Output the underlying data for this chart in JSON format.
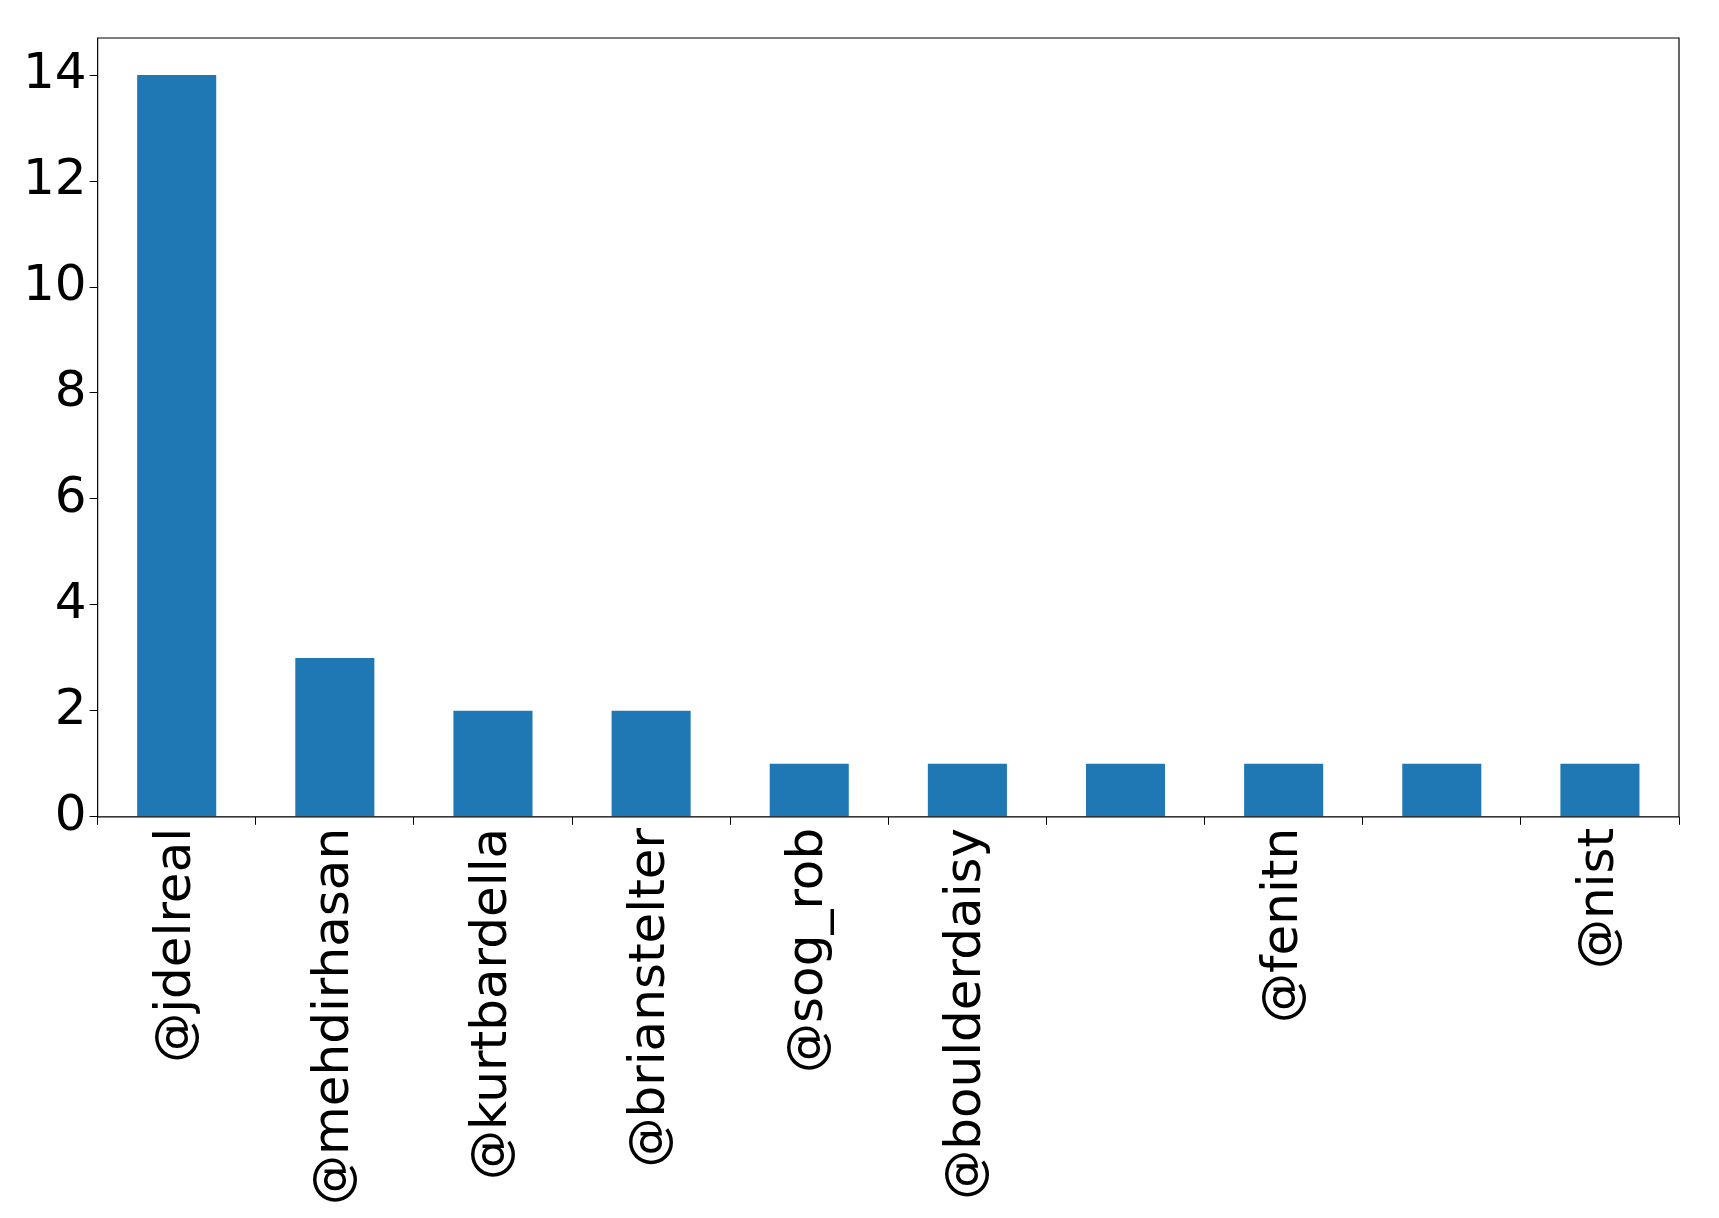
{
  "chart_data": {
    "type": "bar",
    "categories": [
      "@jdelreal",
      "@mehdirhasan",
      "@kurtbardella",
      "@brianstelter",
      "@sog_rob",
      "@boulderdaisy",
      null,
      "@fenitn",
      null,
      "@nist"
    ],
    "values": [
      14,
      3,
      2,
      2,
      1,
      1,
      1,
      1,
      1,
      1
    ],
    "color": "#1f77b4",
    "ylim": [
      0,
      14.7
    ],
    "yticks": [
      0,
      2,
      4,
      6,
      8,
      10,
      12,
      14
    ],
    "grid": false
  }
}
